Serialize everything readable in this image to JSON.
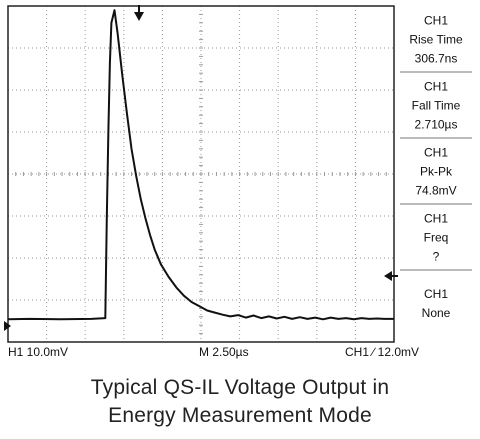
{
  "chart_data": {
    "type": "line",
    "title": "",
    "xlabel": "",
    "ylabel": "",
    "grid": true,
    "grid_divisions": {
      "x": 10,
      "y": 8
    },
    "x_units": "time (µs)",
    "y_units": "voltage (mV)",
    "xlim": [
      -6.4,
      18.6
    ],
    "ylim": [
      -5.5,
      74.5
    ],
    "series": [
      {
        "x": [
          -6.4,
          -5.0,
          -3.0,
          -1.0,
          -0.1,
          0.0,
          0.1,
          0.2,
          0.3,
          0.5,
          0.7,
          1.0,
          1.3,
          1.6,
          1.9,
          2.2,
          2.5,
          2.8,
          3.1,
          3.5,
          4.0,
          4.5,
          5.0,
          5.5,
          6.0,
          6.5,
          7.0,
          7.5,
          8.0,
          8.5,
          9.0,
          9.5,
          10.0,
          10.5,
          11.0,
          11.5,
          12.0,
          12.5,
          13.0,
          13.5,
          14.0,
          14.5,
          15.0,
          15.5,
          16.0,
          16.5,
          17.0,
          17.5,
          18.0,
          18.6
        ],
        "y": [
          -0.1,
          0.0,
          -0.1,
          0.0,
          0.2,
          24.0,
          45.0,
          61.0,
          70.5,
          73.5,
          68.0,
          58.0,
          49.0,
          40.5,
          34.0,
          28.5,
          24.0,
          20.0,
          16.5,
          13.0,
          10.0,
          7.5,
          5.5,
          4.0,
          3.0,
          2.0,
          1.5,
          1.0,
          0.6,
          0.9,
          0.3,
          0.8,
          0.2,
          0.6,
          0.1,
          0.5,
          0.0,
          0.4,
          0.0,
          0.3,
          -0.1,
          0.3,
          0.0,
          0.2,
          -0.1,
          0.2,
          0.0,
          0.1,
          0.0,
          0.0
        ]
      }
    ]
  },
  "measurements": [
    {
      "channel": "CH1",
      "name": "Rise Time",
      "value": "306.7ns"
    },
    {
      "channel": "CH1",
      "name": "Fall Time",
      "value": "2.710µs"
    },
    {
      "channel": "CH1",
      "name": "Pk-Pk",
      "value": "74.8mV"
    },
    {
      "channel": "CH1",
      "name": "Freq",
      "value": "?"
    },
    {
      "channel": "CH1",
      "name": "None",
      "value": ""
    }
  ],
  "status_bar": {
    "ch1_scale": "H1  10.0mV",
    "timebase": "M 2.50µs",
    "trigger": "CH1 ∕ 12.0mV"
  },
  "caption": {
    "line1": "Typical QS-IL Voltage Output in",
    "line2": "Energy Measurement  Mode"
  },
  "colors": {
    "trace": "#111111",
    "grid": "#9a9a9a",
    "frame": "#222222"
  }
}
